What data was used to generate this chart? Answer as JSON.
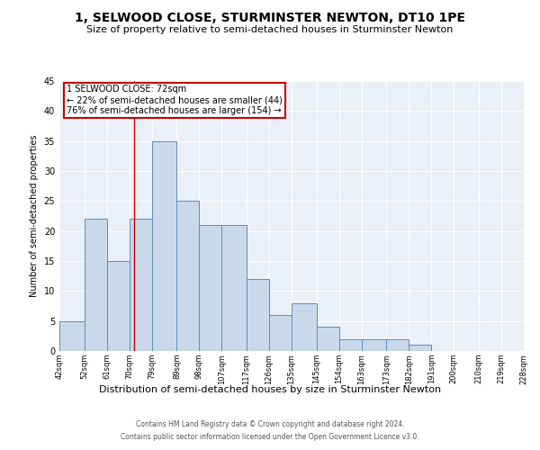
{
  "title": "1, SELWOOD CLOSE, STURMINSTER NEWTON, DT10 1PE",
  "subtitle": "Size of property relative to semi-detached houses in Sturminster Newton",
  "xlabel": "Distribution of semi-detached houses by size in Sturminster Newton",
  "ylabel": "Number of semi-detached properties",
  "footnote1": "Contains HM Land Registry data © Crown copyright and database right 2024.",
  "footnote2": "Contains public sector information licensed under the Open Government Licence v3.0.",
  "bar_edges": [
    42,
    52,
    61,
    70,
    79,
    89,
    98,
    107,
    117,
    126,
    135,
    145,
    154,
    163,
    173,
    182,
    191,
    200,
    210,
    219,
    228
  ],
  "bar_heights": [
    5,
    22,
    15,
    22,
    35,
    25,
    21,
    21,
    12,
    6,
    8,
    4,
    2,
    2,
    2,
    1,
    0,
    0,
    0,
    0
  ],
  "tick_labels": [
    "42sqm",
    "52sqm",
    "61sqm",
    "70sqm",
    "79sqm",
    "89sqm",
    "98sqm",
    "107sqm",
    "117sqm",
    "126sqm",
    "135sqm",
    "145sqm",
    "154sqm",
    "163sqm",
    "173sqm",
    "182sqm",
    "191sqm",
    "200sqm",
    "210sqm",
    "219sqm",
    "228sqm"
  ],
  "bar_color": "#c9d9ea",
  "bar_edge_color": "#5b8db8",
  "property_line_x": 72,
  "annotation_title": "1 SELWOOD CLOSE: 72sqm",
  "annotation_line1": "← 22% of semi-detached houses are smaller (44)",
  "annotation_line2": "76% of semi-detached houses are larger (154) →",
  "annotation_box_color": "#ffffff",
  "annotation_box_edge": "#cc0000",
  "vline_color": "#cc0000",
  "ylim": [
    0,
    45
  ],
  "yticks": [
    0,
    5,
    10,
    15,
    20,
    25,
    30,
    35,
    40,
    45
  ],
  "bg_color": "#eaf0f8",
  "title_fontsize": 10,
  "subtitle_fontsize": 8,
  "footnote_fontsize": 5.5
}
